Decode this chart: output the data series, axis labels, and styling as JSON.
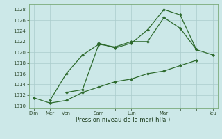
{
  "bg_color": "#cce8e8",
  "grid_color": "#aacccc",
  "line_color": "#2d6a2d",
  "ylabel_ticks": [
    1010,
    1012,
    1014,
    1016,
    1018,
    1020,
    1022,
    1024,
    1026,
    1028
  ],
  "xlabels": [
    "Dim",
    "Mer",
    "Ven",
    "",
    "Sam",
    "",
    "Lun",
    "",
    "Mar",
    "",
    "",
    "Jeu"
  ],
  "xlabel_text": "Pression niveau de la mer( hPa )",
  "x_positions": [
    0,
    1,
    2,
    3,
    4,
    5,
    6,
    7,
    8,
    9,
    10,
    11
  ],
  "line1": [
    1011.5,
    1010.5,
    1011.0,
    1012.5,
    1013.5,
    1014.5,
    1015.0,
    1016.0,
    1016.5,
    1017.5,
    1018.5,
    null
  ],
  "line2": [
    null,
    null,
    1012.5,
    1013.0,
    1021.5,
    1021.0,
    1022.0,
    1022.0,
    1026.5,
    1024.5,
    1020.5,
    1019.5
  ],
  "line3": [
    null,
    null,
    null,
    null,
    1021.7,
    1020.8,
    1021.7,
    1024.2,
    1028.0,
    1027.0,
    1020.5,
    null
  ],
  "line4": [
    null,
    1011.0,
    1016.0,
    1019.5,
    1021.5,
    null,
    null,
    null,
    null,
    null,
    null,
    null
  ],
  "ylim": [
    1009.5,
    1029
  ],
  "xlim": [
    -0.3,
    11.3
  ]
}
